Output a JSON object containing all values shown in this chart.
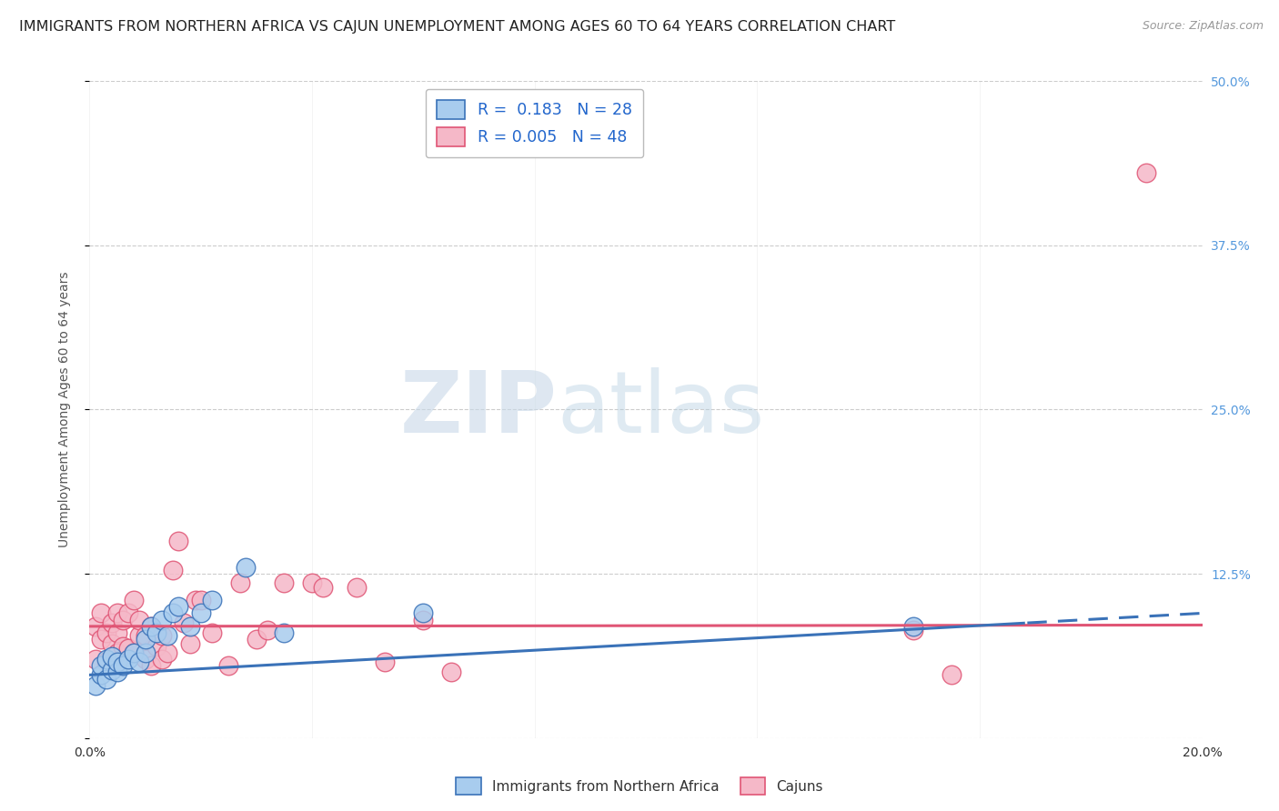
{
  "title": "IMMIGRANTS FROM NORTHERN AFRICA VS CAJUN UNEMPLOYMENT AMONG AGES 60 TO 64 YEARS CORRELATION CHART",
  "source": "Source: ZipAtlas.com",
  "ylabel": "Unemployment Among Ages 60 to 64 years",
  "xlim": [
    0.0,
    0.2
  ],
  "ylim": [
    0.0,
    0.5
  ],
  "xticks": [
    0.0,
    0.04,
    0.08,
    0.12,
    0.16,
    0.2
  ],
  "xtick_labels": [
    "0.0%",
    "",
    "",
    "",
    "",
    "20.0%"
  ],
  "ytick_labels_right": [
    "12.5%",
    "25.0%",
    "37.5%",
    "50.0%"
  ],
  "yticks": [
    0.0,
    0.125,
    0.25,
    0.375,
    0.5
  ],
  "yticks_right_vals": [
    0.125,
    0.25,
    0.375,
    0.5
  ],
  "legend_r_blue": "0.183",
  "legend_n_blue": "28",
  "legend_r_pink": "0.005",
  "legend_n_pink": "48",
  "blue_color": "#a8ccee",
  "pink_color": "#f5b8c8",
  "blue_line_color": "#3a72b8",
  "pink_line_color": "#e05575",
  "watermark_zip": "ZIP",
  "watermark_atlas": "atlas",
  "blue_scatter_x": [
    0.001,
    0.002,
    0.002,
    0.003,
    0.003,
    0.004,
    0.004,
    0.005,
    0.005,
    0.006,
    0.007,
    0.008,
    0.009,
    0.01,
    0.01,
    0.011,
    0.012,
    0.013,
    0.014,
    0.015,
    0.016,
    0.018,
    0.02,
    0.022,
    0.028,
    0.035,
    0.06,
    0.148
  ],
  "blue_scatter_y": [
    0.04,
    0.048,
    0.055,
    0.045,
    0.06,
    0.052,
    0.062,
    0.05,
    0.058,
    0.055,
    0.06,
    0.065,
    0.058,
    0.065,
    0.075,
    0.085,
    0.08,
    0.09,
    0.078,
    0.095,
    0.1,
    0.085,
    0.095,
    0.105,
    0.13,
    0.08,
    0.095,
    0.085
  ],
  "pink_scatter_x": [
    0.001,
    0.001,
    0.002,
    0.002,
    0.003,
    0.003,
    0.004,
    0.004,
    0.005,
    0.005,
    0.005,
    0.006,
    0.006,
    0.007,
    0.007,
    0.008,
    0.008,
    0.009,
    0.009,
    0.01,
    0.01,
    0.011,
    0.011,
    0.012,
    0.013,
    0.013,
    0.014,
    0.015,
    0.016,
    0.017,
    0.018,
    0.019,
    0.02,
    0.022,
    0.025,
    0.027,
    0.03,
    0.032,
    0.035,
    0.04,
    0.042,
    0.048,
    0.053,
    0.06,
    0.065,
    0.148,
    0.155,
    0.19
  ],
  "pink_scatter_y": [
    0.06,
    0.085,
    0.075,
    0.095,
    0.058,
    0.08,
    0.072,
    0.088,
    0.065,
    0.08,
    0.095,
    0.07,
    0.09,
    0.068,
    0.095,
    0.065,
    0.105,
    0.078,
    0.09,
    0.06,
    0.078,
    0.085,
    0.055,
    0.07,
    0.06,
    0.078,
    0.065,
    0.128,
    0.15,
    0.088,
    0.072,
    0.105,
    0.105,
    0.08,
    0.055,
    0.118,
    0.075,
    0.082,
    0.118,
    0.118,
    0.115,
    0.115,
    0.058,
    0.09,
    0.05,
    0.082,
    0.048,
    0.43
  ],
  "grid_color": "#cccccc",
  "bg_color": "#ffffff",
  "title_fontsize": 11.5,
  "axis_label_fontsize": 10,
  "tick_fontsize": 10,
  "blue_trend_x": [
    0.0,
    0.2
  ],
  "blue_trend_y": [
    0.048,
    0.095
  ],
  "pink_trend_x": [
    0.0,
    0.2
  ],
  "pink_trend_y": [
    0.085,
    0.086
  ]
}
